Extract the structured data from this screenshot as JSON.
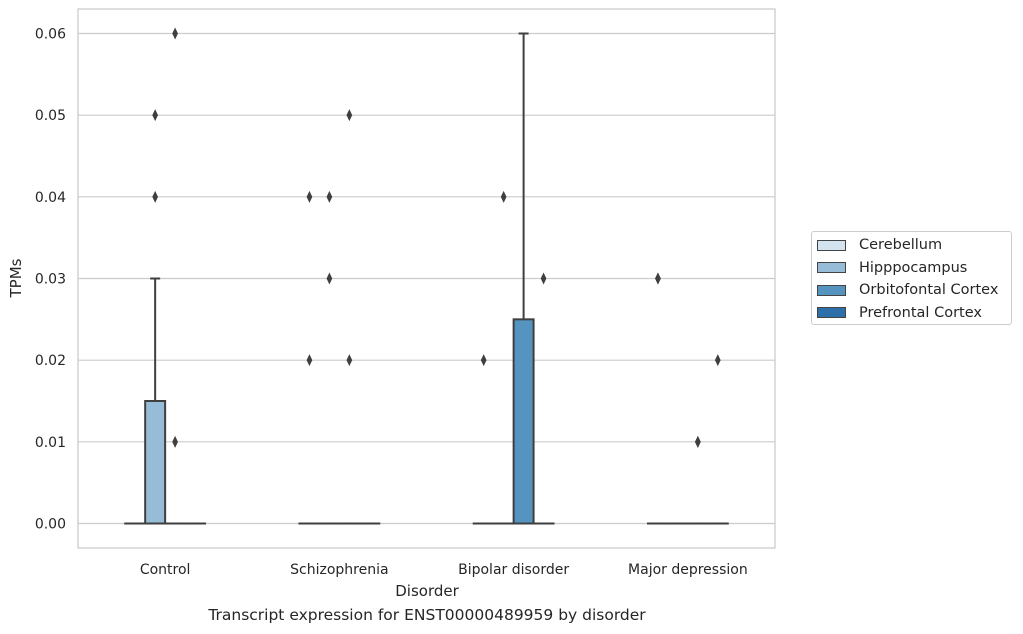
{
  "chart_data": {
    "type": "box",
    "title": "",
    "caption": "Transcript expression for ENST00000489959 by disorder",
    "xlabel": "Disorder",
    "ylabel": "TPMs",
    "ylim": [
      -0.003,
      0.063
    ],
    "yticks": [
      "0.00",
      "0.01",
      "0.02",
      "0.03",
      "0.04",
      "0.05",
      "0.06"
    ],
    "ytick_values": [
      0,
      0.01,
      0.02,
      0.03,
      0.04,
      0.05,
      0.06
    ],
    "grid": "horizontal",
    "legend_position": "outside right",
    "categories": [
      "Control",
      "Schizophrenia",
      "Bipolar disorder",
      "Major depression"
    ],
    "series": [
      {
        "name": "Cerebellum",
        "color": "#d4e3f0",
        "boxes": [
          {
            "q1": 0,
            "median": 0,
            "q3": 0,
            "whisker_low": 0,
            "whisker_high": 0,
            "outliers": []
          },
          {
            "q1": 0,
            "median": 0,
            "q3": 0,
            "whisker_low": 0,
            "whisker_high": 0,
            "outliers": [
              0.04,
              0.02
            ]
          },
          {
            "q1": 0,
            "median": 0,
            "q3": 0,
            "whisker_low": 0,
            "whisker_high": 0,
            "outliers": [
              0.02
            ]
          },
          {
            "q1": 0,
            "median": 0,
            "q3": 0,
            "whisker_low": 0,
            "whisker_high": 0,
            "outliers": [
              0.03,
              0.03
            ]
          }
        ]
      },
      {
        "name": "Hipppocampus",
        "color": "#97bcd8",
        "boxes": [
          {
            "q1": 0,
            "median": 0,
            "q3": 0.015,
            "whisker_low": 0,
            "whisker_high": 0.03,
            "outliers": [
              0.05,
              0.04
            ]
          },
          {
            "q1": 0,
            "median": 0,
            "q3": 0,
            "whisker_low": 0,
            "whisker_high": 0,
            "outliers": [
              0.04,
              0.03
            ]
          },
          {
            "q1": 0,
            "median": 0,
            "q3": 0,
            "whisker_low": 0,
            "whisker_high": 0,
            "outliers": [
              0.04
            ]
          },
          {
            "q1": 0,
            "median": 0,
            "q3": 0,
            "whisker_low": 0,
            "whisker_high": 0,
            "outliers": []
          }
        ]
      },
      {
        "name": "Orbitofontal Cortex",
        "color": "#5594c0",
        "boxes": [
          {
            "q1": 0,
            "median": 0,
            "q3": 0,
            "whisker_low": 0,
            "whisker_high": 0,
            "outliers": [
              0.06,
              0.01
            ]
          },
          {
            "q1": 0,
            "median": 0,
            "q3": 0,
            "whisker_low": 0,
            "whisker_high": 0,
            "outliers": [
              0.05,
              0.02
            ]
          },
          {
            "q1": 0,
            "median": 0,
            "q3": 0.025,
            "whisker_low": 0,
            "whisker_high": 0.06,
            "outliers": []
          },
          {
            "q1": 0,
            "median": 0,
            "q3": 0,
            "whisker_low": 0,
            "whisker_high": 0,
            "outliers": [
              0.01,
              0.01
            ]
          }
        ]
      },
      {
        "name": "Prefrontal Cortex",
        "color": "#2d6fa9",
        "boxes": [
          {
            "q1": 0,
            "median": 0,
            "q3": 0,
            "whisker_low": 0,
            "whisker_high": 0,
            "outliers": []
          },
          {
            "q1": 0,
            "median": 0,
            "q3": 0,
            "whisker_low": 0,
            "whisker_high": 0,
            "outliers": []
          },
          {
            "q1": 0,
            "median": 0,
            "q3": 0,
            "whisker_low": 0,
            "whisker_high": 0,
            "outliers": [
              0.03
            ]
          },
          {
            "q1": 0,
            "median": 0,
            "q3": 0,
            "whisker_low": 0,
            "whisker_high": 0,
            "outliers": [
              0.02
            ]
          }
        ]
      }
    ]
  }
}
